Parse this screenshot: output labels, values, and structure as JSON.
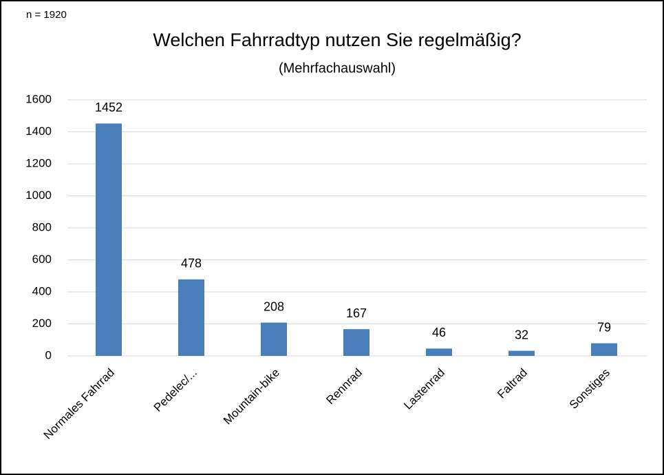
{
  "chart_data": {
    "type": "bar",
    "title": "Welchen Fahrradtyp nutzen Sie regelmäßig?",
    "subtitle": "(Mehrfachauswahl)",
    "annotation": "n = 1920",
    "categories": [
      "Normales Fahrrad",
      "Pedelec/...",
      "Mountain-bike",
      "Rennrad",
      "Lastenrad",
      "Faltrad",
      "Sonstiges"
    ],
    "values": [
      1452,
      478,
      208,
      167,
      46,
      32,
      79
    ],
    "color": "#4a7ebb",
    "ylim": [
      0,
      1600
    ],
    "yticks": [
      0,
      200,
      400,
      600,
      800,
      1000,
      1200,
      1400,
      1600
    ],
    "grid": true
  }
}
